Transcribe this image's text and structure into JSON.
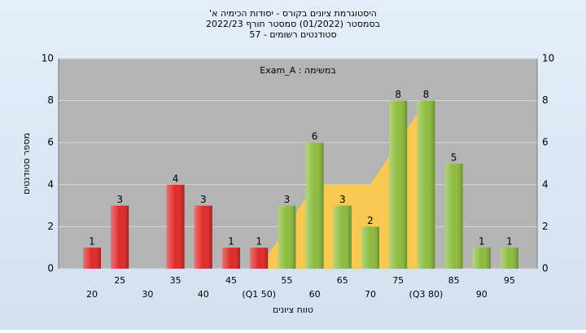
{
  "chart_data": {
    "type": "bar",
    "title": "היסטוגרמת ציונים בקורס - יסודות הכימיה א'",
    "subtitle": "בסמסטר (01/2022) סמסטר חורף 2022/23",
    "subtitle2": "סטודנטים רשומים - 57",
    "annotation": "במשימה : Exam_A",
    "ylabel": "מספר סטודנטים",
    "xlabel": "טווח ציונים",
    "categories": [
      "20",
      "25",
      "30",
      "35",
      "40",
      "45",
      "(Q1 50)",
      "55",
      "60",
      "65",
      "70",
      "75",
      "(Q3 80)",
      "85",
      "90",
      "95"
    ],
    "values": [
      1,
      3,
      0,
      4,
      3,
      1,
      1,
      3,
      6,
      3,
      2,
      8,
      8,
      5,
      1,
      1
    ],
    "value_labels": [
      "1",
      "3",
      null,
      "4",
      "3",
      "1",
      "1",
      "3",
      "6",
      "3",
      "2",
      "8",
      "8",
      "5",
      "1",
      "1"
    ],
    "colors": [
      "#e02828",
      "#e02828",
      "#e02828",
      "#e02828",
      "#e02828",
      "#e02828",
      "#e02828",
      "#8cbc3c",
      "#8cbc3c",
      "#8cbc3c",
      "#8cbc3c",
      "#8cbc3c",
      "#8cbc3c",
      "#8cbc3c",
      "#8cbc3c",
      "#8cbc3c"
    ],
    "area": {
      "color": "#f8c850",
      "values": [
        null,
        null,
        null,
        null,
        null,
        null,
        0,
        2,
        4,
        4,
        4,
        6,
        8,
        null,
        null,
        null
      ]
    },
    "ylim": [
      0,
      10
    ],
    "yticks": [
      0,
      2,
      4,
      6,
      8,
      10
    ],
    "y2lim": [
      0,
      10
    ],
    "y2ticks": [
      0,
      2,
      4,
      6,
      8,
      10
    ],
    "grid": true
  }
}
